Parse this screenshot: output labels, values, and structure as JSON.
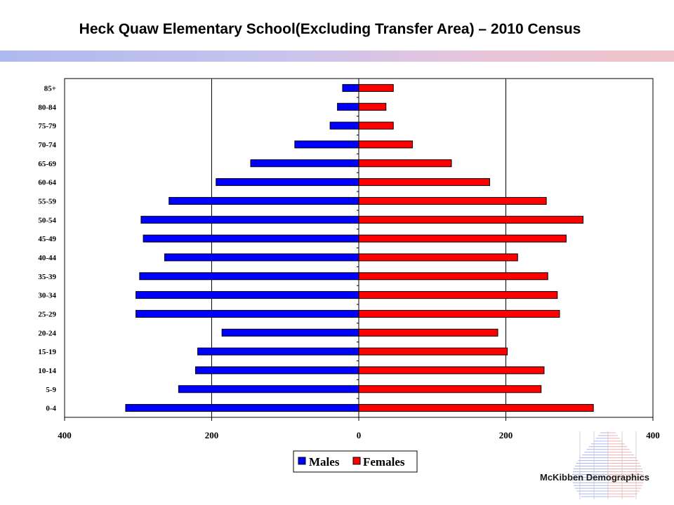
{
  "title": "Heck Quaw Elementary School(Excluding Transfer Area) – 2010 Census",
  "brand": "McKibben Demographics",
  "colors": {
    "males": "#0000ff",
    "females": "#ff0000"
  },
  "chart_data": {
    "type": "bar",
    "orientation": "horizontal",
    "categories": [
      "85+",
      "80-84",
      "75-79",
      "70-74",
      "65-69",
      "60-64",
      "55-59",
      "50-54",
      "45-49",
      "40-44",
      "35-39",
      "30-34",
      "25-29",
      "20-24",
      "15-19",
      "10-14",
      "5-9",
      "0-4"
    ],
    "series": [
      {
        "name": "Males",
        "values": [
          22,
          29,
          39,
          87,
          147,
          194,
          258,
          296,
          293,
          264,
          298,
          303,
          303,
          186,
          219,
          222,
          245,
          317
        ]
      },
      {
        "name": "Females",
        "values": [
          47,
          37,
          47,
          73,
          126,
          178,
          255,
          305,
          282,
          216,
          257,
          270,
          273,
          189,
          202,
          252,
          248,
          319
        ]
      }
    ],
    "xlim": [
      -400,
      400
    ],
    "xticks": [
      -400,
      -200,
      0,
      200,
      400
    ],
    "xtick_labels": [
      "400",
      "200",
      "0",
      "200",
      "400"
    ],
    "legend_position": "bottom",
    "grid": "vertical"
  }
}
